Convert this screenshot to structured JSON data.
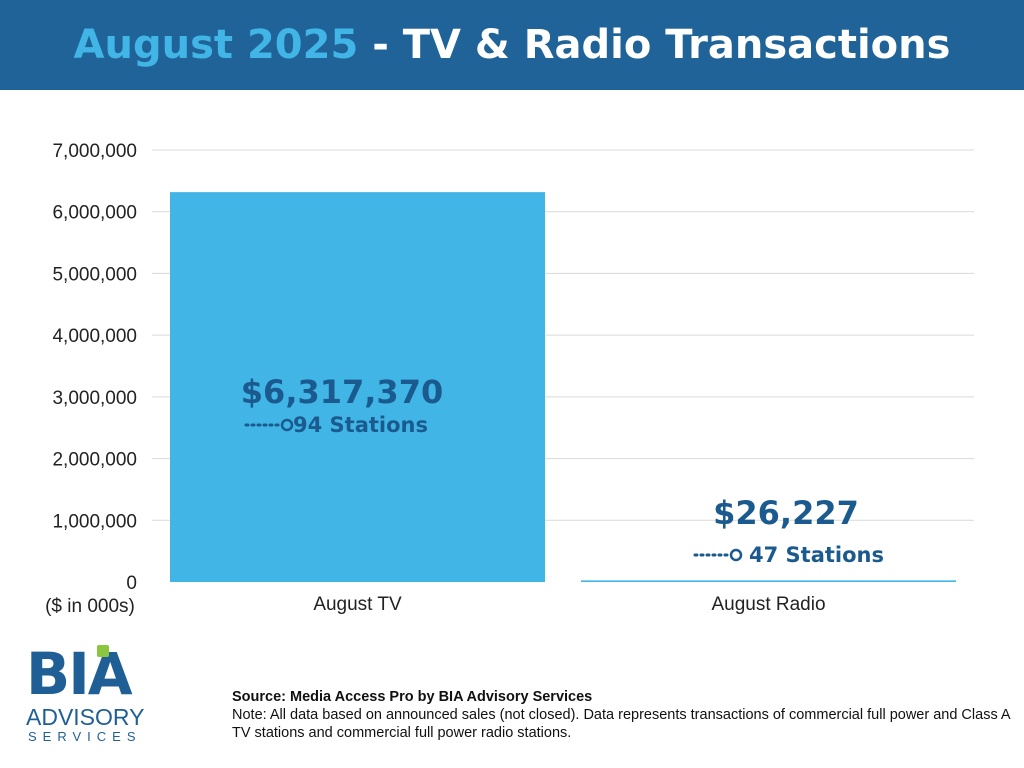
{
  "header": {
    "title_accent": "August 2025",
    "title_rest": " - TV & Radio Transactions"
  },
  "colors": {
    "header_bg": "#1f6398",
    "accent": "#41b6e6",
    "bar": "#41b6e6",
    "label": "#1b5a8e",
    "grid": "#d9d9d9"
  },
  "chart_data": {
    "type": "bar",
    "title": "August 2025 - TV & Radio Transactions",
    "categories": [
      "August TV",
      "August Radio"
    ],
    "values": [
      6317370,
      26227
    ],
    "value_labels": [
      "$6,317,370",
      "$26,227"
    ],
    "station_labels": [
      "94 Stations",
      "47 Stations"
    ],
    "yticks": [
      0,
      1000000,
      2000000,
      3000000,
      4000000,
      5000000,
      6000000,
      7000000
    ],
    "ytick_labels": [
      "0",
      "1,000,000",
      "2,000,000",
      "3,000,000",
      "4,000,000",
      "5,000,000",
      "6,000,000",
      "7,000,000"
    ],
    "ylim": [
      0,
      7000000
    ],
    "ylabel": "($ in 000s)",
    "xlabel": "",
    "grid": true,
    "legend": "none"
  },
  "logo": {
    "main": "BIA",
    "line1": "ADVISORY",
    "line2": "SERVICES"
  },
  "footnote": {
    "source": "Source: Media Access Pro by BIA Advisory Services",
    "note": "Note: All data based on announced sales (not closed).  Data represents transactions of commercial full power and Class A TV stations and commercial full power radio stations."
  }
}
